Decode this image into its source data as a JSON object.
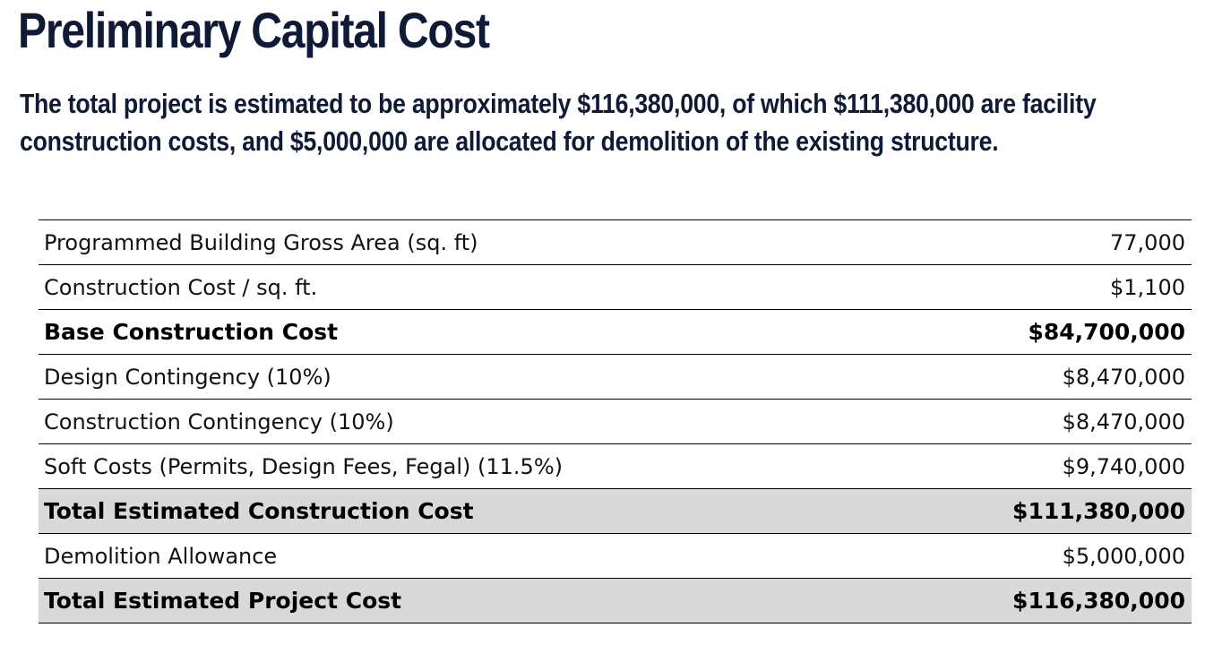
{
  "page": {
    "title": "Preliminary Capital Cost",
    "summary": "The total project is estimated to be approximately $116,380,000, of which $111,380,000 are facility construction costs, and $5,000,000 are allocated for demolition of the existing structure."
  },
  "colors": {
    "heading": "#0f1a36",
    "shaded_row": "#d9d9d9",
    "rule": "#000000"
  },
  "table": {
    "rows": [
      {
        "label": "Programmed Building Gross Area (sq. ft)",
        "value": "77,000",
        "bold": false,
        "shaded": false
      },
      {
        "label": "Construction Cost / sq. ft.",
        "value": "$1,100",
        "bold": false,
        "shaded": false
      },
      {
        "label": "Base Construction Cost",
        "value": "$84,700,000",
        "bold": true,
        "shaded": false
      },
      {
        "label": "Design Contingency (10%)",
        "value": "$8,470,000",
        "bold": false,
        "shaded": false
      },
      {
        "label": "Construction Contingency (10%)",
        "value": "$8,470,000",
        "bold": false,
        "shaded": false
      },
      {
        "label": "Soft Costs (Permits, Design Fees, Fegal) (11.5%)",
        "value": "$9,740,000",
        "bold": false,
        "shaded": false
      },
      {
        "label": "Total Estimated Construction Cost",
        "value": "$111,380,000",
        "bold": true,
        "shaded": true
      },
      {
        "label": "Demolition Allowance",
        "value": "$5,000,000",
        "bold": false,
        "shaded": false
      },
      {
        "label": "Total Estimated Project Cost",
        "value": "$116,380,000",
        "bold": true,
        "shaded": true
      }
    ]
  }
}
